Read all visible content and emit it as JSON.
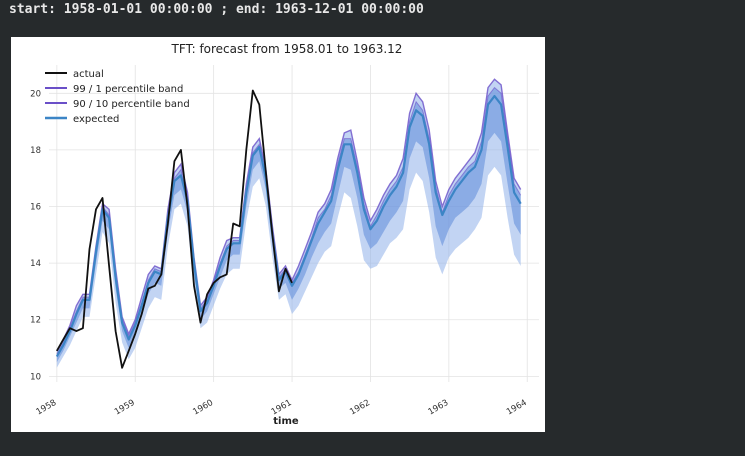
{
  "console": {
    "text": "start: 1958-01-01 00:00:00 ; end: 1963-12-01 00:00:00"
  },
  "colors": {
    "actual": "#111111",
    "expected": "#3c85c6",
    "band_99_1": "#6a4fc8",
    "band_90_10": "#6a4fc8",
    "band_fill": "#8fb0ea"
  },
  "chart_data": {
    "type": "line",
    "title": "TFT: forecast from 1958.01 to 1963.12",
    "xlabel": "time",
    "ylabel": "",
    "xlim": [
      1957.9,
      1964.15
    ],
    "ylim": [
      9.8,
      21.0
    ],
    "x_tick_labels": [
      "1958",
      "1959",
      "1960",
      "1961",
      "1962",
      "1963",
      "1964"
    ],
    "x_ticks": [
      1958,
      1959,
      1960,
      1961,
      1962,
      1963,
      1964
    ],
    "y_tick_labels": [
      "10",
      "12",
      "14",
      "16",
      "18",
      "20"
    ],
    "y_ticks": [
      10,
      12,
      14,
      16,
      18,
      20
    ],
    "grid": true,
    "legend_position": "top-left",
    "legend": [
      "actual",
      "99 / 1 percentile band",
      "90 / 10 percentile band",
      "expected"
    ],
    "actual": {
      "name": "actual",
      "x": [
        1958.0,
        1958.083,
        1958.167,
        1958.25,
        1958.333,
        1958.417,
        1958.5,
        1958.583,
        1958.667,
        1958.75,
        1958.833,
        1958.917,
        1959.0,
        1959.083,
        1959.167,
        1959.25,
        1959.333,
        1959.417,
        1959.5,
        1959.583,
        1959.667,
        1959.75,
        1959.833,
        1959.917,
        1960.0,
        1960.083,
        1960.167,
        1960.25,
        1960.333,
        1960.417,
        1960.5,
        1960.583,
        1960.667,
        1960.75,
        1960.833,
        1960.917,
        1961.0
      ],
      "values": [
        10.9,
        11.3,
        11.7,
        11.6,
        11.7,
        14.5,
        15.9,
        16.3,
        13.9,
        11.6,
        10.3,
        10.9,
        11.5,
        12.2,
        13.1,
        13.2,
        13.6,
        15.4,
        17.6,
        18.0,
        16.0,
        13.2,
        11.9,
        12.9,
        13.3,
        13.5,
        13.6,
        15.4,
        15.3,
        18.0,
        20.1,
        19.6,
        17.2,
        15.0,
        13.0,
        13.8,
        13.3
      ]
    },
    "expected": {
      "name": "expected",
      "x": [
        1958.0,
        1958.083,
        1958.167,
        1958.25,
        1958.333,
        1958.417,
        1958.5,
        1958.583,
        1958.667,
        1958.75,
        1958.833,
        1958.917,
        1959.0,
        1959.083,
        1959.167,
        1959.25,
        1959.333,
        1959.417,
        1959.5,
        1959.583,
        1959.667,
        1959.75,
        1959.833,
        1959.917,
        1960.0,
        1960.083,
        1960.167,
        1960.25,
        1960.333,
        1960.417,
        1960.5,
        1960.583,
        1960.667,
        1960.75,
        1960.833,
        1960.917,
        1961.0,
        1961.083,
        1961.167,
        1961.25,
        1961.333,
        1961.417,
        1961.5,
        1961.583,
        1961.667,
        1961.75,
        1961.833,
        1961.917,
        1962.0,
        1962.083,
        1962.167,
        1962.25,
        1962.333,
        1962.417,
        1962.5,
        1962.583,
        1962.667,
        1962.75,
        1962.833,
        1962.917,
        1963.0,
        1963.083,
        1963.167,
        1963.25,
        1963.333,
        1963.417,
        1963.5,
        1963.583,
        1963.667,
        1963.75,
        1963.833,
        1963.917
      ],
      "values": [
        10.7,
        11.1,
        11.6,
        12.2,
        12.7,
        12.7,
        14.4,
        15.9,
        15.6,
        13.5,
        11.9,
        11.3,
        11.8,
        12.5,
        13.3,
        13.7,
        13.6,
        15.6,
        16.9,
        17.1,
        16.2,
        14.0,
        12.3,
        12.6,
        13.2,
        13.9,
        14.5,
        14.7,
        14.7,
        16.5,
        17.8,
        18.1,
        17.0,
        15.0,
        13.4,
        13.7,
        13.2,
        13.6,
        14.2,
        14.8,
        15.4,
        15.8,
        16.2,
        17.3,
        18.2,
        18.2,
        17.2,
        15.9,
        15.2,
        15.5,
        16.0,
        16.4,
        16.7,
        17.2,
        18.8,
        19.4,
        19.2,
        18.2,
        16.5,
        15.7,
        16.2,
        16.6,
        16.9,
        17.2,
        17.4,
        18.0,
        19.6,
        19.9,
        19.6,
        18.1,
        16.5,
        16.1
      ]
    },
    "band_99_1": {
      "name": "99 / 1 percentile band",
      "upper": [
        10.9,
        11.3,
        11.8,
        12.5,
        12.9,
        12.9,
        14.6,
        16.1,
        15.9,
        13.8,
        12.1,
        11.5,
        12.0,
        12.8,
        13.6,
        13.9,
        13.8,
        15.9,
        17.2,
        17.5,
        16.5,
        14.2,
        12.5,
        12.8,
        13.4,
        14.2,
        14.8,
        14.9,
        14.9,
        16.8,
        18.1,
        18.4,
        17.3,
        15.3,
        13.6,
        13.9,
        13.4,
        13.9,
        14.5,
        15.1,
        15.8,
        16.1,
        16.6,
        17.7,
        18.6,
        18.7,
        17.6,
        16.3,
        15.5,
        15.9,
        16.4,
        16.8,
        17.1,
        17.7,
        19.3,
        20.0,
        19.7,
        18.7,
        16.9,
        16.0,
        16.6,
        17.0,
        17.3,
        17.6,
        17.9,
        18.6,
        20.2,
        20.5,
        20.3,
        18.6,
        17.0,
        16.6
      ],
      "lower": [
        10.3,
        10.7,
        11.1,
        11.6,
        12.1,
        12.1,
        13.6,
        15.1,
        14.7,
        12.6,
        11.2,
        10.6,
        11.0,
        11.7,
        12.4,
        12.8,
        12.7,
        14.6,
        15.9,
        16.1,
        15.3,
        13.2,
        11.7,
        11.9,
        12.5,
        13.1,
        13.6,
        13.8,
        13.8,
        15.5,
        16.7,
        17.0,
        16.0,
        14.2,
        12.7,
        12.9,
        12.2,
        12.5,
        13.0,
        13.5,
        14.0,
        14.4,
        14.6,
        15.6,
        16.5,
        16.3,
        15.3,
        14.1,
        13.8,
        13.9,
        14.3,
        14.7,
        14.9,
        15.2,
        16.6,
        17.2,
        16.9,
        15.8,
        14.2,
        13.6,
        14.2,
        14.5,
        14.7,
        14.9,
        15.2,
        15.6,
        17.1,
        17.4,
        17.1,
        15.6,
        14.3,
        13.9
      ]
    },
    "band_90_10": {
      "name": "90 / 10 percentile band",
      "upper": [
        10.8,
        11.2,
        11.7,
        12.3,
        12.8,
        12.8,
        14.5,
        16.0,
        15.7,
        13.6,
        12.0,
        11.4,
        11.9,
        12.6,
        13.4,
        13.8,
        13.7,
        15.7,
        17.0,
        17.3,
        16.3,
        14.1,
        12.4,
        12.7,
        13.3,
        14.0,
        14.6,
        14.8,
        14.8,
        16.6,
        17.9,
        18.2,
        17.1,
        15.1,
        13.5,
        13.8,
        13.3,
        13.7,
        14.3,
        14.9,
        15.6,
        15.9,
        16.4,
        17.5,
        18.4,
        18.4,
        17.4,
        16.1,
        15.3,
        15.7,
        16.2,
        16.6,
        16.9,
        17.4,
        19.0,
        19.7,
        19.4,
        18.4,
        16.7,
        15.8,
        16.4,
        16.8,
        17.1,
        17.4,
        17.6,
        18.3,
        19.9,
        20.2,
        20.0,
        18.4,
        16.8,
        16.4
      ],
      "lower": [
        10.5,
        10.9,
        11.4,
        11.9,
        12.4,
        12.4,
        14.0,
        15.5,
        15.2,
        13.1,
        11.6,
        11.0,
        11.4,
        12.1,
        12.9,
        13.3,
        13.2,
        15.1,
        16.4,
        16.6,
        15.8,
        13.6,
        12.0,
        12.3,
        12.9,
        13.5,
        14.1,
        14.3,
        14.3,
        16.0,
        17.3,
        17.6,
        16.6,
        14.6,
        13.1,
        13.3,
        12.7,
        13.1,
        13.6,
        14.2,
        14.7,
        15.1,
        15.4,
        16.4,
        17.4,
        17.3,
        16.3,
        15.0,
        14.5,
        14.7,
        15.1,
        15.5,
        15.8,
        16.2,
        17.7,
        18.3,
        18.1,
        17.0,
        15.3,
        14.6,
        15.2,
        15.6,
        15.8,
        16.0,
        16.3,
        16.8,
        18.3,
        18.6,
        18.3,
        16.8,
        15.4,
        15.0
      ]
    }
  }
}
